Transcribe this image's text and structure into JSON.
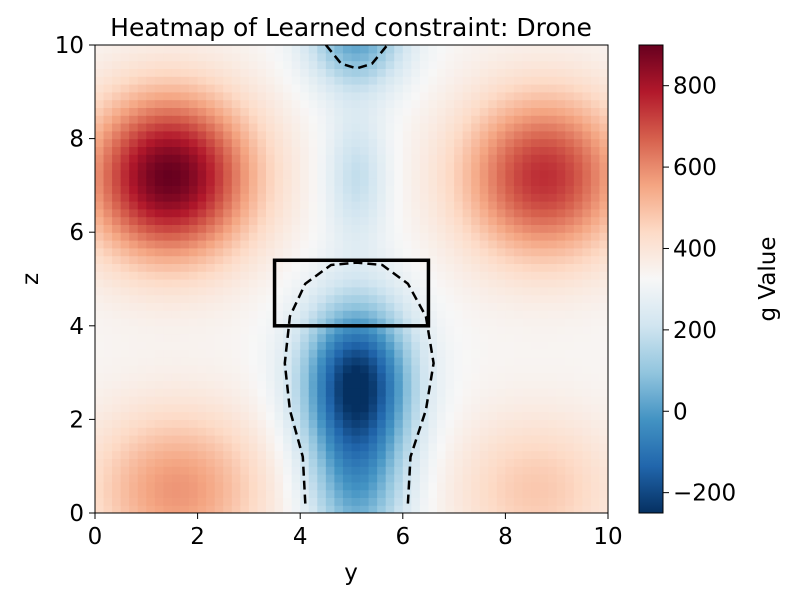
{
  "chart_data": {
    "type": "heatmap",
    "title": "Heatmap of Learned constraint: Drone",
    "xlabel": "y",
    "ylabel": "z",
    "colorbar_label": "g Value",
    "xlim": [
      0,
      10
    ],
    "ylim": [
      0,
      10
    ],
    "x_ticks": [
      "0",
      "2",
      "4",
      "6",
      "8",
      "10"
    ],
    "y_ticks": [
      "0",
      "2",
      "4",
      "6",
      "8",
      "10"
    ],
    "colormap": "RdBu_r",
    "color_range": [
      -250,
      900
    ],
    "colorbar_ticks": [
      "800",
      "600",
      "400",
      "200",
      "0",
      "−200"
    ],
    "colorbar_tick_values": [
      800,
      600,
      400,
      200,
      0,
      -200
    ],
    "features": [
      {
        "name": "high region upper-left",
        "x": 1.5,
        "y": 7.2,
        "value": 900
      },
      {
        "name": "high region upper-right",
        "x": 8.7,
        "y": 7.2,
        "value": 750
      },
      {
        "name": "moderate region lower-left",
        "x": 1.5,
        "y": 0.5,
        "value": 580
      },
      {
        "name": "moderate region lower-right",
        "x": 8.7,
        "y": 0.5,
        "value": 480
      },
      {
        "name": "low region center",
        "x": 5.1,
        "y": 2.8,
        "value": -250
      },
      {
        "name": "low region top",
        "x": 5.1,
        "y": 10.0,
        "value": 0
      }
    ],
    "zero_contours": [
      {
        "style": "dashed",
        "points": [
          [
            4.1,
            0.2
          ],
          [
            4.05,
            1.2
          ],
          [
            3.8,
            2.2
          ],
          [
            3.7,
            3.2
          ],
          [
            3.8,
            4.2
          ],
          [
            4.1,
            4.9
          ],
          [
            4.6,
            5.3
          ],
          [
            5.1,
            5.35
          ],
          [
            5.6,
            5.3
          ],
          [
            6.1,
            4.9
          ],
          [
            6.45,
            4.2
          ],
          [
            6.6,
            3.2
          ],
          [
            6.45,
            2.2
          ],
          [
            6.15,
            1.2
          ],
          [
            6.1,
            0.2
          ]
        ]
      },
      {
        "style": "dashed",
        "points": [
          [
            4.5,
            10.0
          ],
          [
            4.8,
            9.6
          ],
          [
            5.1,
            9.5
          ],
          [
            5.4,
            9.6
          ],
          [
            5.7,
            10.0
          ]
        ]
      }
    ],
    "rectangle": {
      "x0": 3.5,
      "y0": 4.0,
      "x1": 6.5,
      "y1": 5.4
    },
    "colors": {
      "low": "#053061",
      "mid": "#f7f7f7",
      "high": "#67001f"
    }
  }
}
